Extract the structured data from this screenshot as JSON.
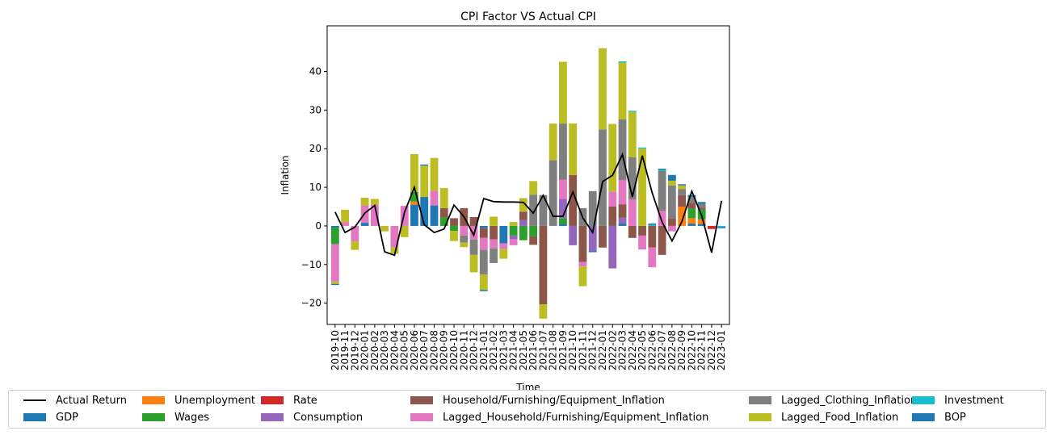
{
  "chart_data": {
    "type": "bar",
    "stacked": true,
    "title": "CPI Factor VS Actual CPI",
    "xlabel": "Time",
    "ylabel": "Inflation",
    "ylim": [
      -25.5,
      51.8
    ],
    "yticks": [
      -20,
      -10,
      0,
      10,
      20,
      30,
      40
    ],
    "legend_location": "bottom",
    "categories": [
      "2019-10",
      "2019-11",
      "2019-12",
      "2020-01",
      "2020-02",
      "2020-03",
      "2020-04",
      "2020-05",
      "2020-06",
      "2020-07",
      "2020-08",
      "2020-09",
      "2020-10",
      "2020-11",
      "2020-12",
      "2021-01",
      "2021-02",
      "2021-03",
      "2021-04",
      "2021-05",
      "2021-06",
      "2021-07",
      "2021-08",
      "2021-09",
      "2021-10",
      "2021-11",
      "2021-12",
      "2022-01",
      "2022-02",
      "2022-03",
      "2022-04",
      "2022-05",
      "2022-06",
      "2022-07",
      "2022-08",
      "2022-09",
      "2022-10",
      "2022-11",
      "2022-12",
      "2023-01"
    ],
    "line": {
      "name": "Actual Return",
      "color": "#000000",
      "values": [
        3.6,
        -1.7,
        -0.3,
        3.3,
        5.3,
        -6.7,
        -7.6,
        3.5,
        10.0,
        0.3,
        -1.7,
        -0.8,
        5.4,
        2.4,
        -2.4,
        7.1,
        6.3,
        6.2,
        6.2,
        6.1,
        3.3,
        7.9,
        2.5,
        2.5,
        8.8,
        2.1,
        -1.7,
        11.5,
        13.1,
        18.5,
        7.5,
        18.2,
        8.6,
        1.0,
        -3.9,
        1.1,
        9.0,
        2.6,
        -6.9,
        6.5
      ]
    },
    "series": [
      {
        "name": "GDP",
        "color": "#1f77b4",
        "values": [
          -0.5,
          0,
          0,
          0.8,
          0,
          0,
          0,
          0,
          5.5,
          7.5,
          5.3,
          0,
          0,
          0,
          0,
          -0.6,
          0,
          -4.5,
          0,
          0,
          0,
          0,
          0,
          0.5,
          0,
          0,
          0,
          0,
          0,
          0.6,
          0,
          0,
          0,
          0,
          0,
          0,
          0.6,
          0.5,
          0,
          0
        ]
      },
      {
        "name": "Unemployment",
        "color": "#ff7f0e",
        "values": [
          0,
          0,
          0,
          0,
          0,
          0,
          0,
          0,
          0.8,
          0,
          0,
          0,
          0,
          0,
          0,
          0,
          0,
          0,
          0,
          0,
          0,
          0,
          0,
          0,
          0,
          0,
          0,
          0,
          0,
          0,
          0,
          0,
          0,
          0,
          0,
          5.0,
          1.4,
          1.2,
          0,
          0
        ]
      },
      {
        "name": "Wages",
        "color": "#2ca02c",
        "values": [
          -4.2,
          0,
          0,
          0,
          0,
          0,
          0,
          0,
          2.5,
          0,
          0,
          2.2,
          -1.3,
          0,
          0,
          0,
          0,
          0,
          -2.5,
          -3.7,
          -2.7,
          0,
          0,
          1.5,
          0,
          0,
          0,
          0,
          0,
          0,
          0,
          0,
          0,
          0,
          0,
          0,
          2.5,
          2.5,
          0,
          0
        ]
      },
      {
        "name": "Rate",
        "color": "#d62728",
        "values": [
          0,
          0,
          0,
          0,
          0,
          0,
          0,
          0,
          0,
          0,
          0,
          0,
          0,
          0,
          0,
          0,
          0,
          0,
          0,
          0,
          0,
          0,
          0,
          0,
          0,
          0,
          0,
          0,
          0,
          0,
          0,
          0,
          0,
          0,
          0,
          0,
          0,
          0,
          -0.8,
          0
        ]
      },
      {
        "name": "Consumption",
        "color": "#9467bd",
        "values": [
          0,
          0,
          0,
          0,
          0,
          0,
          0,
          0,
          0,
          0,
          0,
          0,
          0,
          0,
          0,
          0,
          0,
          0,
          -1.0,
          1.5,
          0,
          0,
          0,
          5.0,
          -5.0,
          0,
          -6.5,
          0,
          -11.0,
          1.5,
          0,
          0,
          0,
          0,
          0,
          0,
          0,
          0,
          0,
          0
        ]
      },
      {
        "name": "Household/Furnishing/Equipment_Inflation",
        "color": "#8c564b",
        "values": [
          0,
          0,
          0,
          0,
          0,
          0,
          0,
          0,
          0,
          0,
          0,
          2.4,
          2.0,
          4.6,
          2.3,
          -2.5,
          -3.5,
          0,
          0,
          2.2,
          -2.2,
          -20.3,
          0,
          0,
          13.2,
          -9.3,
          0,
          -5.6,
          5.0,
          3.5,
          -3.1,
          -2.5,
          -5.6,
          -7.5,
          2.0,
          3.0,
          1.5,
          0.5,
          0,
          0
        ]
      },
      {
        "name": "Lagged_Household/Furnishing/Equipment_Inflation",
        "color": "#e377c2",
        "values": [
          -9.7,
          1.0,
          -4.0,
          4.5,
          5.5,
          0,
          -5.5,
          5.2,
          0,
          0,
          3.8,
          0,
          0,
          -2.5,
          -3.5,
          -3.1,
          -2.3,
          -1.5,
          -1.5,
          0,
          0,
          0,
          0,
          5.0,
          0,
          -1.2,
          0,
          0,
          3.9,
          6.3,
          6.8,
          -3.6,
          -5.1,
          3.9,
          -1.4,
          0,
          0,
          0,
          0,
          0
        ]
      },
      {
        "name": "Lagged_Clothing_Inflation",
        "color": "#7f7f7f",
        "values": [
          0,
          0,
          0,
          0,
          0,
          0,
          0,
          0,
          0,
          0,
          0,
          0,
          0,
          -1.8,
          -4.0,
          -6.4,
          -3.8,
          0,
          0,
          0,
          8.1,
          8.0,
          17.0,
          14.5,
          0,
          4.6,
          9.0,
          25.0,
          0,
          15.7,
          11.0,
          0,
          0,
          10.3,
          8.5,
          1.5,
          1.5,
          1.0,
          0,
          0
        ]
      },
      {
        "name": "Lagged_Food_Inflation",
        "color": "#bcbd22",
        "values": [
          -0.6,
          3.2,
          -2.2,
          2.0,
          1.5,
          -1.4,
          -1.7,
          -2.9,
          9.8,
          8.1,
          8.5,
          5.2,
          -2.6,
          -1.2,
          -4.5,
          -4.0,
          2.4,
          -2.5,
          1.0,
          3.5,
          3.5,
          -3.7,
          9.5,
          16.0,
          13.3,
          -5.1,
          0,
          21.0,
          17.5,
          14.7,
          11.7,
          20.0,
          0,
          0,
          1.2,
          1.0,
          0,
          0,
          0,
          0
        ]
      },
      {
        "name": "Investment",
        "color": "#17becf",
        "values": [
          0,
          0,
          0,
          0,
          0,
          0,
          0,
          0,
          0,
          0,
          0,
          0,
          0,
          0,
          0,
          0,
          0,
          0,
          0,
          0,
          0,
          0,
          0,
          0,
          0,
          0,
          0,
          0,
          0,
          0.3,
          0.3,
          0.3,
          0.3,
          0.3,
          0,
          0,
          0,
          0,
          0,
          -0.3
        ]
      },
      {
        "name": "BOP",
        "color": "#1f77b4",
        "values": [
          -0.3,
          0,
          0,
          0,
          0,
          0,
          0,
          0,
          0,
          0.3,
          0,
          0,
          0,
          0,
          0,
          -0.3,
          0,
          0,
          0,
          0,
          0,
          0,
          0,
          0,
          0,
          0,
          -0.3,
          0,
          0,
          0,
          0,
          0,
          0.3,
          0.3,
          1.5,
          0.3,
          0.5,
          0.5,
          0,
          -0.3
        ]
      }
    ]
  }
}
